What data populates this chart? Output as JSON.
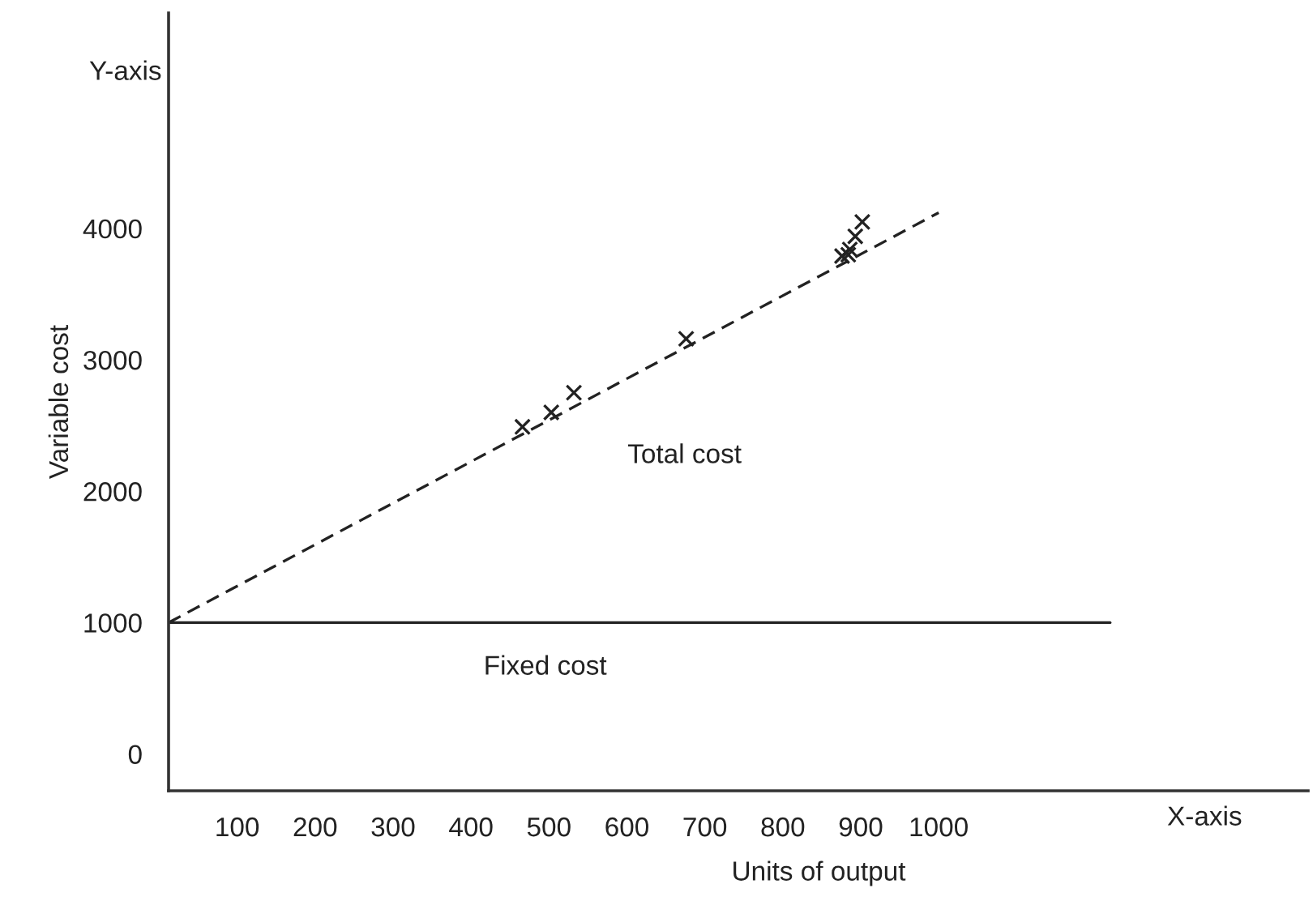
{
  "chart_data": {
    "type": "scatter",
    "xlabel": "Units of output",
    "ylabel": "Variable cost",
    "xlim": [
      12,
      1474
    ],
    "ylim": [
      -280,
      5640
    ],
    "xticks": [
      100,
      200,
      300,
      400,
      500,
      600,
      700,
      800,
      900,
      1000
    ],
    "yticks": [
      0,
      1000,
      2000,
      3000,
      4000
    ],
    "grid": false,
    "legend": false,
    "series": [
      {
        "type": "scatter",
        "marker": "cross",
        "color": "#222222",
        "x": [
          466,
          503,
          532,
          676,
          876,
          884,
          886,
          893,
          902
        ],
        "values": [
          2490,
          2600,
          2750,
          3160,
          3790,
          3800,
          3840,
          3940,
          4050
        ]
      },
      {
        "name": "Total cost",
        "type": "line",
        "line_style": "dashed",
        "marker": "none",
        "color": "#222222",
        "x": [
          12,
          1000
        ],
        "values": [
          1000,
          4120
        ]
      },
      {
        "name": "Fixed cost",
        "type": "line",
        "line_style": "solid",
        "marker": "none",
        "color": "#222222",
        "x": [
          12,
          1220
        ],
        "values": [
          1000,
          1000
        ]
      }
    ],
    "annotations": [
      "Y-axis",
      "X-axis"
    ]
  }
}
